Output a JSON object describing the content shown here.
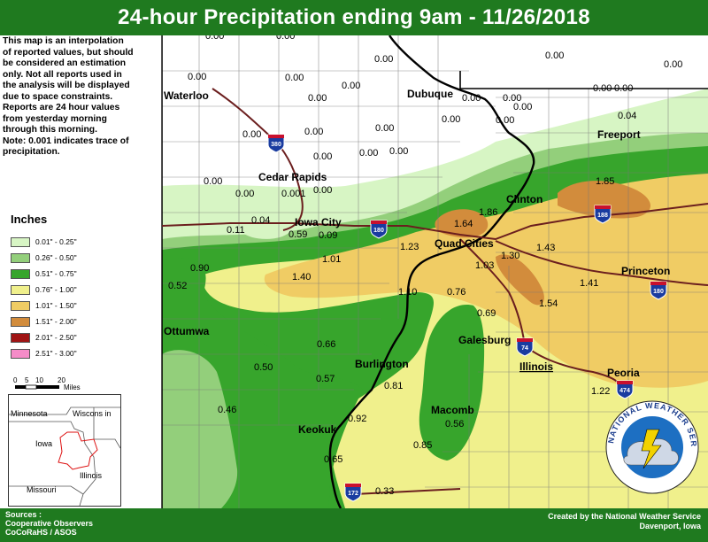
{
  "title": "24-hour Precipitation ending 9am - 11/26/2018",
  "disclaimer": [
    "This map is an interpolation",
    "of reported values, but should",
    "be considered an estimation",
    "only. Not all reports used in",
    "the analysis will be displayed",
    "due to space constraints.",
    "Reports are 24 hour values",
    "from yesterday morning",
    "through this morning.",
    "Note: 0.001 indicates trace of",
    "precipitation."
  ],
  "legend": {
    "title": "Inches",
    "items": [
      {
        "label": "0.01\" - 0.25\"",
        "color": "#d7f5c4"
      },
      {
        "label": "0.26\" - 0.50\"",
        "color": "#93cf7b"
      },
      {
        "label": "0.51\" - 0.75\"",
        "color": "#37a52c"
      },
      {
        "label": "0.76\" - 1.00\"",
        "color": "#f0f08c"
      },
      {
        "label": "1.01\" - 1.50\"",
        "color": "#f0cc64"
      },
      {
        "label": "1.51\" - 2.00\"",
        "color": "#d28c3c"
      },
      {
        "label": "2.01\" - 2.50\"",
        "color": "#a01414"
      },
      {
        "label": "2.51\" - 3.00\"",
        "color": "#f58cc8"
      }
    ]
  },
  "scale": {
    "ticks": [
      "0",
      "5",
      "10",
      "20"
    ],
    "unit": "Miles"
  },
  "inset": {
    "labels": [
      "Minnesota",
      "Wiscons in",
      "Iowa",
      "Illinois",
      "Missouri"
    ]
  },
  "sources": [
    "Sources :",
    "Cooperative Observers",
    "CoCoRaHS / ASOS"
  ],
  "credit": [
    "Created by the National Weather Service",
    "Davenport, Iowa"
  ],
  "logo_text": "NATIONAL WEATHER SERVICE",
  "interstates": [
    "380",
    "180",
    "188",
    "180",
    "74",
    "474",
    "172"
  ],
  "cities": [
    "Waterloo",
    "Dubuque",
    "Freeport",
    "Cedar Rapids",
    "Clinton",
    "Iowa City",
    "Quad Cities",
    "Princeton",
    "Ottumwa",
    "Galesburg",
    "Burlington",
    "Illinois",
    "Peoria",
    "Macomb",
    "Keokuk"
  ],
  "values": [
    "0.00",
    "0.00",
    "0.00",
    "0.00",
    "0.00",
    "0.00",
    "0.00",
    "0.00",
    "0.00",
    "0.00",
    "0.00",
    "0.00",
    "0.00",
    "0.00",
    "0.00",
    "0.00",
    "0.00",
    "0.00",
    "0.00",
    "0.00",
    "0.00",
    "0.00",
    "0.00",
    "0.04",
    "0.001",
    "0.00",
    "0.00",
    "1.85",
    "1.86",
    "0.04",
    "0.11",
    "0.59",
    "0.09",
    "1.64",
    "1.23",
    "1.43",
    "1.01",
    "1.03",
    "1.30",
    "0.90",
    "1.40",
    "1.41",
    "0.52",
    "1.10",
    "0.76",
    "1.54",
    "0.69",
    "0.66",
    "0.50",
    "0.57",
    "0.81",
    "1.22",
    "0.46",
    "0.92",
    "0.56",
    "0.85",
    "0.65",
    "0.33"
  ]
}
